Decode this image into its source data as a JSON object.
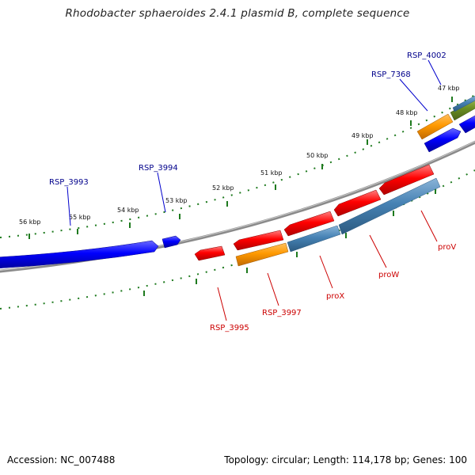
{
  "title": "Rhodobacter sphaeroides 2.4.1 plasmid B, complete sequence",
  "footer": {
    "accession": "Accession: NC_007488",
    "summary": "Topology: circular; Length: 114,178 bp; Genes: 100"
  },
  "colors": {
    "backbone": "#8a8a8a",
    "tick": "#1e7a1e",
    "forward_cds": "#0000ff",
    "reverse_cds": "#ff0000",
    "orange_feature": "#ff9900",
    "steelblue_feature": "#4682b4",
    "olive_feature": "#6b8e23",
    "forward_label": "#00008b",
    "reverse_label": "#cc0000"
  },
  "kbp_labels": [
    "47 kbp",
    "48 kbp",
    "49 kbp",
    "50 kbp",
    "51 kbp",
    "52 kbp",
    "53 kbp",
    "54 kbp",
    "55 kbp",
    "56 kbp"
  ],
  "forward_labels": [
    "RSP_4002",
    "RSP_7368",
    "RSP_3994",
    "RSP_3993"
  ],
  "reverse_labels": [
    "proV",
    "proW",
    "proX",
    "RSP_3997",
    "RSP_3995"
  ]
}
